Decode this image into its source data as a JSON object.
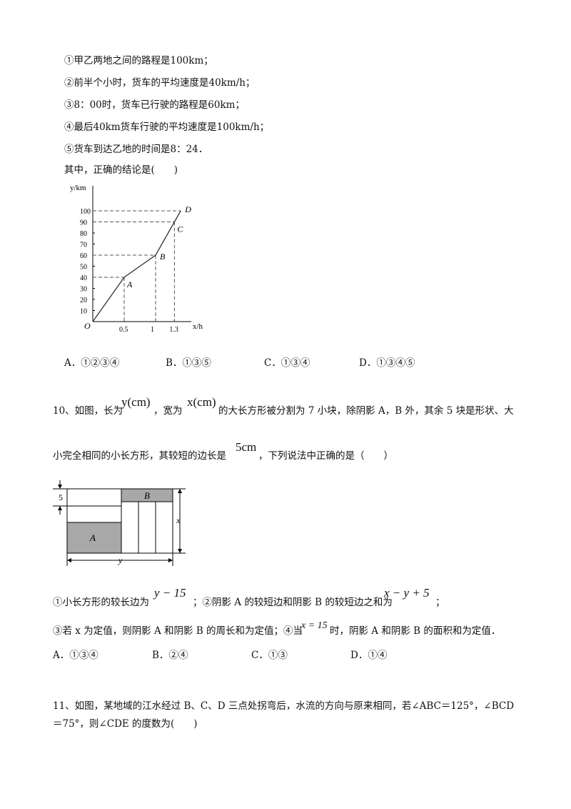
{
  "q9": {
    "statements": [
      "①甲乙两地之间的路程是100km；",
      "②前半个小时，货车的平均速度是40km/h；",
      "③8：00时，货车已行驶的路程是60km；",
      "④最后40km货车行驶的平均速度是100km/h；",
      "⑤货车到达乙地的时间是8：24．"
    ],
    "prompt": "其中，正确的结论是(　　)",
    "options": [
      "A．①②③④",
      "B．①③⑤",
      "C．①③④",
      "D．①③④⑤"
    ]
  },
  "chart_data": {
    "type": "line",
    "xlabel": "x/h",
    "ylabel": "y/km",
    "origin_label": "O",
    "x_ticks": [
      "0.5",
      "1",
      "1.3"
    ],
    "y_ticks": [
      "10",
      "20",
      "30",
      "40",
      "50",
      "60",
      "70",
      "80",
      "90",
      "100"
    ],
    "ylim": [
      0,
      100
    ],
    "grid": false,
    "series": [
      {
        "x": [
          0,
          0.5,
          1,
          1.3,
          1.4
        ],
        "y": [
          0,
          40,
          60,
          90,
          100
        ],
        "point_labels": [
          "",
          "A",
          "B",
          "C",
          "D"
        ]
      }
    ]
  },
  "q10": {
    "intro_a": "10、如图，长为",
    "expr_y": "y(cm)",
    "intro_b": "，宽为",
    "expr_x": "x(cm)",
    "intro_c": "的大长方形被分割为 7 小块，除阴影 A，B 外，其余 5 块是形状、大",
    "line2_a": "小完全相同的小长方形，其较短的边长是",
    "expr_5cm": "5cm",
    "line2_b": "，下列说法中正确的是（　　）",
    "figure": {
      "label_5": "5",
      "label_A": "A",
      "label_B": "B",
      "label_x": "x",
      "label_y": "y"
    },
    "s1_a": "①小长方形的较长边为",
    "expr_s1": "y − 15",
    "s1_b": "；②阴影 A 的较短边和阴影 B 的较短边之和为",
    "expr_s2": "x − y + 5",
    "s1_c": "；",
    "s3_a": "③若 x 为定值，则阴影 A 和阴影 B 的周长和为定值；④当",
    "expr_s4": "x = 15",
    "s3_b": "时，阴影 A 和阴影 B 的面积和为定值．",
    "options": [
      "A．①③④",
      "B．②④",
      "C．①③",
      "D．①④"
    ]
  },
  "q11": {
    "line1": "11、如图，某地域的江水经过 B、C、D 三点处拐弯后，水流的方向与原来相同，若∠ABC＝125°，∠BCD",
    "line2": "＝75°，则∠CDE 的度数为(　　)"
  }
}
